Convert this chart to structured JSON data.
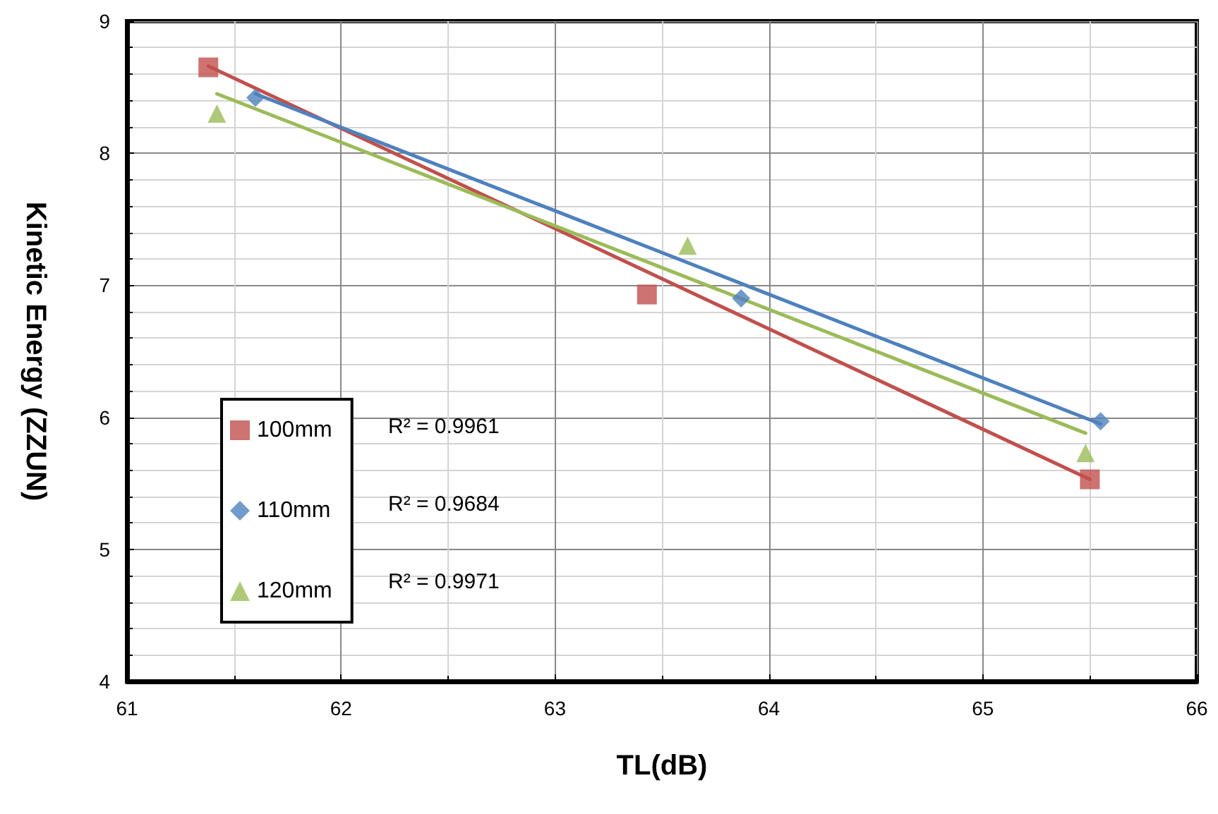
{
  "chart_data": {
    "type": "scatter",
    "xlabel": "TL(dB)",
    "ylabel": "Kinetic Energy (ZZUN)",
    "xlim": [
      61,
      66
    ],
    "xticks": [
      61,
      62,
      63,
      64,
      65,
      66
    ],
    "ylim": [
      4,
      9
    ],
    "yticks": [
      4,
      5,
      6,
      7,
      8,
      9
    ],
    "grid": true,
    "legend": "bottom left",
    "series": [
      {
        "name": "100mm",
        "color": "#c0504d",
        "marker": "square",
        "x": [
          61.38,
          63.43,
          65.5
        ],
        "values": [
          8.65,
          6.93,
          5.53
        ]
      },
      {
        "name": "110mm",
        "color": "#4f81bd",
        "marker": "diamond",
        "x": [
          61.6,
          63.87,
          65.55
        ],
        "values": [
          8.42,
          6.9,
          5.97
        ]
      },
      {
        "name": "120mm",
        "color": "#9bbb59",
        "marker": "triangle",
        "x": [
          61.42,
          63.62,
          65.48
        ],
        "values": [
          8.3,
          7.3,
          5.73
        ]
      },
      {
        "type": "line",
        "color": "#c0504d",
        "marker": "none",
        "x": [
          61.38,
          65.5
        ],
        "values": [
          8.66,
          5.53
        ]
      },
      {
        "type": "line",
        "color": "#4f81bd",
        "marker": "none",
        "x": [
          61.6,
          65.55
        ],
        "values": [
          8.45,
          5.95
        ]
      },
      {
        "type": "line",
        "color": "#9bbb59",
        "marker": "none",
        "x": [
          61.42,
          65.48
        ],
        "values": [
          8.45,
          5.88
        ]
      }
    ],
    "annotations": [
      "R² = 0.9961",
      "R² = 0.9684",
      "R² = 0.9971"
    ]
  }
}
